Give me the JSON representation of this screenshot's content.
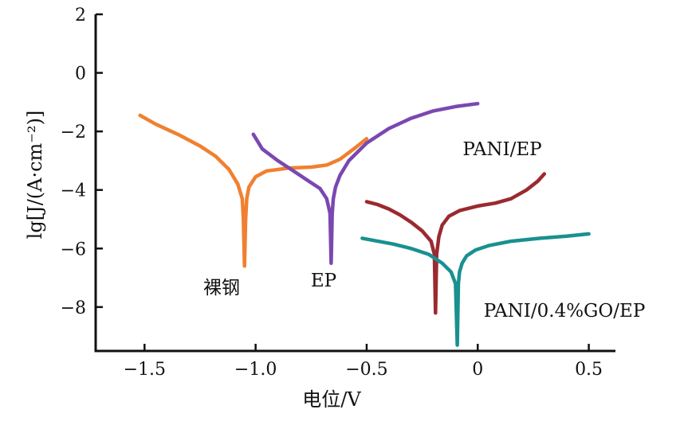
{
  "chart_data": {
    "type": "line",
    "title": "",
    "xlabel": "电位/V",
    "ylabel": "lg[J/(A·cm⁻²)]",
    "xlim": [
      -1.72,
      0.62
    ],
    "ylim": [
      -9.5,
      2
    ],
    "xticks": [
      -1.5,
      -1.0,
      -0.5,
      0,
      0.5
    ],
    "xtick_labels": [
      "−1.5",
      "−1.0",
      "−0.5",
      "0",
      "0.5"
    ],
    "yticks": [
      2,
      0,
      -2,
      -4,
      -6,
      -8
    ],
    "ytick_labels": [
      "2",
      "0",
      "−2",
      "−4",
      "−6",
      "−8"
    ],
    "grid": false,
    "legend": "none",
    "series": [
      {
        "name": "裸钢",
        "color": "#f08030",
        "x": [
          -1.52,
          -1.45,
          -1.35,
          -1.25,
          -1.18,
          -1.12,
          -1.08,
          -1.06,
          -1.055,
          -1.05,
          -1.045,
          -1.04,
          -1.03,
          -1.0,
          -0.95,
          -0.85,
          -0.75,
          -0.68,
          -0.62,
          -0.55,
          -0.5
        ],
        "y": [
          -1.45,
          -1.75,
          -2.1,
          -2.5,
          -2.85,
          -3.3,
          -3.8,
          -4.3,
          -5.0,
          -6.6,
          -5.0,
          -4.3,
          -3.9,
          -3.55,
          -3.35,
          -3.25,
          -3.22,
          -3.15,
          -2.95,
          -2.55,
          -2.25
        ]
      },
      {
        "name": "EP",
        "color": "#7a48b0",
        "x": [
          -1.01,
          -0.97,
          -0.9,
          -0.83,
          -0.76,
          -0.71,
          -0.68,
          -0.665,
          -0.66,
          -0.655,
          -0.65,
          -0.64,
          -0.62,
          -0.58,
          -0.5,
          -0.4,
          -0.3,
          -0.2,
          -0.1,
          0.0
        ],
        "y": [
          -2.1,
          -2.6,
          -3.0,
          -3.35,
          -3.7,
          -3.95,
          -4.3,
          -4.8,
          -6.5,
          -4.8,
          -4.3,
          -3.9,
          -3.5,
          -3.0,
          -2.4,
          -1.9,
          -1.55,
          -1.3,
          -1.15,
          -1.05
        ]
      },
      {
        "name": "PANI/EP",
        "color": "#9a2a30",
        "x": [
          -0.5,
          -0.45,
          -0.4,
          -0.35,
          -0.3,
          -0.25,
          -0.21,
          -0.195,
          -0.19,
          -0.185,
          -0.175,
          -0.16,
          -0.13,
          -0.08,
          0.0,
          0.08,
          0.15,
          0.22,
          0.27,
          0.3
        ],
        "y": [
          -4.4,
          -4.5,
          -4.65,
          -4.85,
          -5.1,
          -5.4,
          -5.75,
          -6.2,
          -8.2,
          -6.2,
          -5.6,
          -5.2,
          -4.9,
          -4.7,
          -4.55,
          -4.45,
          -4.3,
          -4.0,
          -3.7,
          -3.45
        ]
      },
      {
        "name": "PANI/0.4%GO/EP",
        "color": "#1a9090",
        "x": [
          -0.52,
          -0.45,
          -0.38,
          -0.3,
          -0.22,
          -0.16,
          -0.12,
          -0.1,
          -0.092,
          -0.087,
          -0.082,
          -0.07,
          -0.05,
          -0.01,
          0.05,
          0.15,
          0.28,
          0.4,
          0.5
        ],
        "y": [
          -5.65,
          -5.75,
          -5.85,
          -6.0,
          -6.2,
          -6.5,
          -6.8,
          -7.2,
          -9.3,
          -7.2,
          -6.8,
          -6.5,
          -6.25,
          -6.05,
          -5.9,
          -5.75,
          -5.65,
          -5.58,
          -5.5
        ]
      }
    ],
    "annotations": [
      {
        "text": "裸钢",
        "series": "裸钢"
      },
      {
        "text": "EP",
        "series": "EP"
      },
      {
        "text": "PANI/EP",
        "series": "PANI/EP"
      },
      {
        "text": "PANI/0.4%GO/EP",
        "series": "PANI/0.4%GO/EP"
      }
    ]
  }
}
